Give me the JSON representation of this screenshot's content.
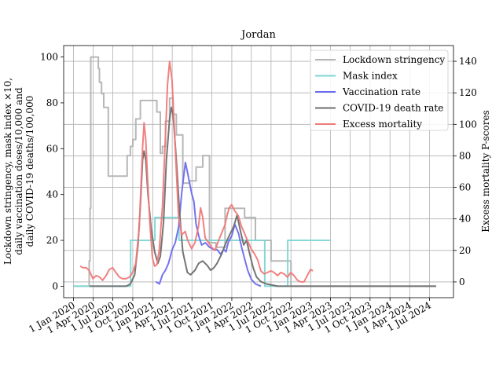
{
  "chart_data": {
    "type": "line",
    "title": "Jordan",
    "ylabel_left": [
      "Lockdown stringency, mask index ×10,",
      "daily vaccination doses/10,000 and",
      "daily COVID-19 deaths/100,000"
    ],
    "ylabel_right": "Excess mortality P-scores",
    "x_ticks": [
      "1 Jan 2020",
      "1 Apr 2020",
      "1 Jul 2020",
      "1 Oct 2020",
      "1 Jan 2021",
      "1 Apr 2021",
      "1 Jul 2021",
      "1 Oct 2021",
      "1 Jan 2022",
      "1 Apr 2022",
      "1 Jul 2022",
      "1 Oct 2022",
      "1 Jan 2023",
      "1 Apr 2023",
      "1 Jul 2023",
      "1 Oct 2023",
      "1 Jan 2024",
      "1 Apr 2024",
      "1 Jul 2024"
    ],
    "xlim": [
      "2019-11-17",
      "2024-10-20"
    ],
    "ylim_left": [
      -5,
      105
    ],
    "ylim_right": [
      -10,
      150
    ],
    "y_ticks_left": [
      0,
      20,
      40,
      60,
      80,
      100
    ],
    "y_ticks_right": [
      0,
      20,
      40,
      60,
      80,
      100,
      120,
      140
    ],
    "grid": true,
    "legend_position": "top-right",
    "colors": {
      "stringency": "#b3b3b3",
      "mask": "#7fd6d6",
      "vaccination": "#6b6bf0",
      "deaths": "#6e6e6e",
      "excess": "#f07a7a"
    },
    "series": [
      {
        "name": "Lockdown stringency",
        "key": "stringency",
        "axis": "left",
        "step": true,
        "points": [
          [
            "2020-01-01",
            0
          ],
          [
            "2020-03-10",
            0
          ],
          [
            "2020-03-14",
            11
          ],
          [
            "2020-03-18",
            34
          ],
          [
            "2020-03-21",
            100
          ],
          [
            "2020-04-25",
            95
          ],
          [
            "2020-04-30",
            89
          ],
          [
            "2020-05-10",
            84
          ],
          [
            "2020-05-20",
            78
          ],
          [
            "2020-06-10",
            48
          ],
          [
            "2020-08-20",
            48
          ],
          [
            "2020-09-05",
            57
          ],
          [
            "2020-09-20",
            61
          ],
          [
            "2020-10-01",
            64
          ],
          [
            "2020-10-15",
            73
          ],
          [
            "2020-11-05",
            81
          ],
          [
            "2020-12-20",
            81
          ],
          [
            "2021-01-10",
            81
          ],
          [
            "2021-01-20",
            76
          ],
          [
            "2021-02-05",
            58
          ],
          [
            "2021-02-15",
            61
          ],
          [
            "2021-03-01",
            72
          ],
          [
            "2021-03-20",
            82
          ],
          [
            "2021-04-05",
            75
          ],
          [
            "2021-04-20",
            66
          ],
          [
            "2021-05-20",
            45
          ],
          [
            "2021-06-20",
            46
          ],
          [
            "2021-07-20",
            52
          ],
          [
            "2021-08-20",
            57
          ],
          [
            "2021-09-20",
            19
          ],
          [
            "2021-10-20",
            17
          ],
          [
            "2021-12-01",
            34
          ],
          [
            "2022-03-01",
            30
          ],
          [
            "2022-04-20",
            20
          ],
          [
            "2022-06-01",
            20
          ],
          [
            "2022-07-01",
            11
          ],
          [
            "2022-09-01",
            11
          ],
          [
            "2022-09-15",
            11
          ],
          [
            "2022-10-01",
            0
          ],
          [
            "2024-08-01",
            0
          ]
        ]
      },
      {
        "name": "Mask index",
        "key": "mask",
        "axis": "left",
        "step": true,
        "points": [
          [
            "2020-01-01",
            0
          ],
          [
            "2020-09-20",
            0
          ],
          [
            "2020-09-21",
            20
          ],
          [
            "2021-01-10",
            20
          ],
          [
            "2021-01-11",
            30
          ],
          [
            "2021-05-01",
            30
          ],
          [
            "2021-05-02",
            20
          ],
          [
            "2022-06-01",
            20
          ],
          [
            "2022-06-02",
            0
          ],
          [
            "2022-09-15",
            0
          ],
          [
            "2022-09-16",
            20
          ],
          [
            "2023-03-31",
            20
          ]
        ]
      },
      {
        "name": "Vaccination rate",
        "key": "vaccination",
        "axis": "left",
        "step": false,
        "points": [
          [
            "2021-01-15",
            2
          ],
          [
            "2021-02-01",
            1
          ],
          [
            "2021-02-15",
            5
          ],
          [
            "2021-03-01",
            7
          ],
          [
            "2021-03-15",
            10
          ],
          [
            "2021-04-01",
            16
          ],
          [
            "2021-04-15",
            19
          ],
          [
            "2021-05-01",
            26
          ],
          [
            "2021-05-15",
            41
          ],
          [
            "2021-06-01",
            54
          ],
          [
            "2021-06-10",
            50
          ],
          [
            "2021-06-20",
            45
          ],
          [
            "2021-07-01",
            40
          ],
          [
            "2021-07-10",
            37
          ],
          [
            "2021-07-20",
            27
          ],
          [
            "2021-08-01",
            22
          ],
          [
            "2021-08-15",
            18
          ],
          [
            "2021-09-01",
            19
          ],
          [
            "2021-09-20",
            17
          ],
          [
            "2021-10-10",
            16
          ],
          [
            "2021-10-25",
            16
          ],
          [
            "2021-11-10",
            14
          ],
          [
            "2021-11-25",
            16
          ],
          [
            "2021-12-05",
            15
          ],
          [
            "2021-12-15",
            19
          ],
          [
            "2022-01-01",
            22
          ],
          [
            "2022-01-15",
            27
          ],
          [
            "2022-02-01",
            23
          ],
          [
            "2022-02-15",
            17
          ],
          [
            "2022-03-01",
            12
          ],
          [
            "2022-03-15",
            7
          ],
          [
            "2022-04-01",
            3
          ],
          [
            "2022-04-20",
            1
          ],
          [
            "2022-05-15",
            0
          ]
        ]
      },
      {
        "name": "COVID-19 death rate",
        "key": "deaths",
        "axis": "left",
        "step": false,
        "points": [
          [
            "2020-03-15",
            0
          ],
          [
            "2020-06-01",
            0
          ],
          [
            "2020-08-01",
            0
          ],
          [
            "2020-09-01",
            0
          ],
          [
            "2020-09-20",
            1
          ],
          [
            "2020-10-10",
            5
          ],
          [
            "2020-10-25",
            18
          ],
          [
            "2020-11-05",
            35
          ],
          [
            "2020-11-15",
            55
          ],
          [
            "2020-11-22",
            59
          ],
          [
            "2020-11-30",
            55
          ],
          [
            "2020-12-10",
            40
          ],
          [
            "2020-12-25",
            25
          ],
          [
            "2021-01-10",
            15
          ],
          [
            "2021-01-25",
            10
          ],
          [
            "2021-02-05",
            13
          ],
          [
            "2021-02-20",
            28
          ],
          [
            "2021-03-05",
            55
          ],
          [
            "2021-03-20",
            73
          ],
          [
            "2021-03-28",
            78
          ],
          [
            "2021-04-05",
            75
          ],
          [
            "2021-04-20",
            55
          ],
          [
            "2021-05-05",
            32
          ],
          [
            "2021-05-20",
            15
          ],
          [
            "2021-06-10",
            6
          ],
          [
            "2021-06-25",
            5
          ],
          [
            "2021-07-15",
            7
          ],
          [
            "2021-08-01",
            10
          ],
          [
            "2021-08-20",
            11
          ],
          [
            "2021-09-10",
            9
          ],
          [
            "2021-09-25",
            7
          ],
          [
            "2021-10-10",
            8
          ],
          [
            "2021-10-25",
            10
          ],
          [
            "2021-11-15",
            14
          ],
          [
            "2021-12-01",
            18
          ],
          [
            "2021-12-20",
            22
          ],
          [
            "2022-01-10",
            26
          ],
          [
            "2022-01-25",
            31
          ],
          [
            "2022-02-10",
            24
          ],
          [
            "2022-02-25",
            18
          ],
          [
            "2022-03-10",
            20
          ],
          [
            "2022-03-25",
            14
          ],
          [
            "2022-04-10",
            8
          ],
          [
            "2022-04-25",
            4
          ],
          [
            "2022-05-15",
            2
          ],
          [
            "2022-06-10",
            1
          ],
          [
            "2022-08-01",
            0
          ],
          [
            "2024-08-01",
            0
          ]
        ]
      },
      {
        "name": "Excess mortality",
        "key": "excess",
        "axis": "right",
        "step": false,
        "points": [
          [
            "2020-02-01",
            10
          ],
          [
            "2020-02-15",
            9
          ],
          [
            "2020-03-01",
            9
          ],
          [
            "2020-03-15",
            7
          ],
          [
            "2020-03-31",
            2
          ],
          [
            "2020-04-15",
            4
          ],
          [
            "2020-05-01",
            3
          ],
          [
            "2020-05-15",
            1
          ],
          [
            "2020-05-31",
            4
          ],
          [
            "2020-06-15",
            8
          ],
          [
            "2020-06-30",
            9
          ],
          [
            "2020-07-15",
            6
          ],
          [
            "2020-07-31",
            3
          ],
          [
            "2020-08-15",
            2
          ],
          [
            "2020-08-31",
            2
          ],
          [
            "2020-09-15",
            3
          ],
          [
            "2020-09-30",
            6
          ],
          [
            "2020-10-15",
            12
          ],
          [
            "2020-10-31",
            35
          ],
          [
            "2020-11-15",
            85
          ],
          [
            "2020-11-22",
            101
          ],
          [
            "2020-11-30",
            90
          ],
          [
            "2020-12-10",
            60
          ],
          [
            "2020-12-20",
            35
          ],
          [
            "2020-12-31",
            15
          ],
          [
            "2021-01-10",
            10
          ],
          [
            "2021-01-20",
            11
          ],
          [
            "2021-01-31",
            20
          ],
          [
            "2021-02-15",
            48
          ],
          [
            "2021-02-28",
            90
          ],
          [
            "2021-03-10",
            125
          ],
          [
            "2021-03-20",
            140
          ],
          [
            "2021-03-31",
            128
          ],
          [
            "2021-04-15",
            85
          ],
          [
            "2021-04-30",
            42
          ],
          [
            "2021-05-15",
            30
          ],
          [
            "2021-05-31",
            32
          ],
          [
            "2021-06-10",
            27
          ],
          [
            "2021-06-30",
            21
          ],
          [
            "2021-07-15",
            25
          ],
          [
            "2021-07-31",
            35
          ],
          [
            "2021-08-10",
            47
          ],
          [
            "2021-08-20",
            41
          ],
          [
            "2021-08-31",
            28
          ],
          [
            "2021-09-15",
            25
          ],
          [
            "2021-09-30",
            22
          ],
          [
            "2021-10-15",
            20
          ],
          [
            "2021-10-31",
            26
          ],
          [
            "2021-11-15",
            31
          ],
          [
            "2021-11-30",
            36
          ],
          [
            "2021-12-10",
            42
          ],
          [
            "2021-12-20",
            47
          ],
          [
            "2021-12-31",
            49
          ],
          [
            "2022-01-15",
            45
          ],
          [
            "2022-01-31",
            42
          ],
          [
            "2022-02-15",
            35
          ],
          [
            "2022-02-28",
            31
          ],
          [
            "2022-03-15",
            26
          ],
          [
            "2022-03-31",
            21
          ],
          [
            "2022-04-15",
            18
          ],
          [
            "2022-04-30",
            14
          ],
          [
            "2022-05-15",
            7
          ],
          [
            "2022-05-31",
            5
          ],
          [
            "2022-06-15",
            6
          ],
          [
            "2022-06-30",
            7
          ],
          [
            "2022-07-15",
            6
          ],
          [
            "2022-07-31",
            4
          ],
          [
            "2022-08-15",
            6
          ],
          [
            "2022-08-31",
            5
          ],
          [
            "2022-09-15",
            3
          ],
          [
            "2022-09-30",
            6
          ],
          [
            "2022-10-15",
            4
          ],
          [
            "2022-10-31",
            1
          ],
          [
            "2022-11-15",
            0
          ],
          [
            "2022-11-30",
            0
          ],
          [
            "2022-12-15",
            4
          ],
          [
            "2022-12-31",
            8
          ],
          [
            "2023-01-10",
            7
          ]
        ]
      }
    ]
  }
}
